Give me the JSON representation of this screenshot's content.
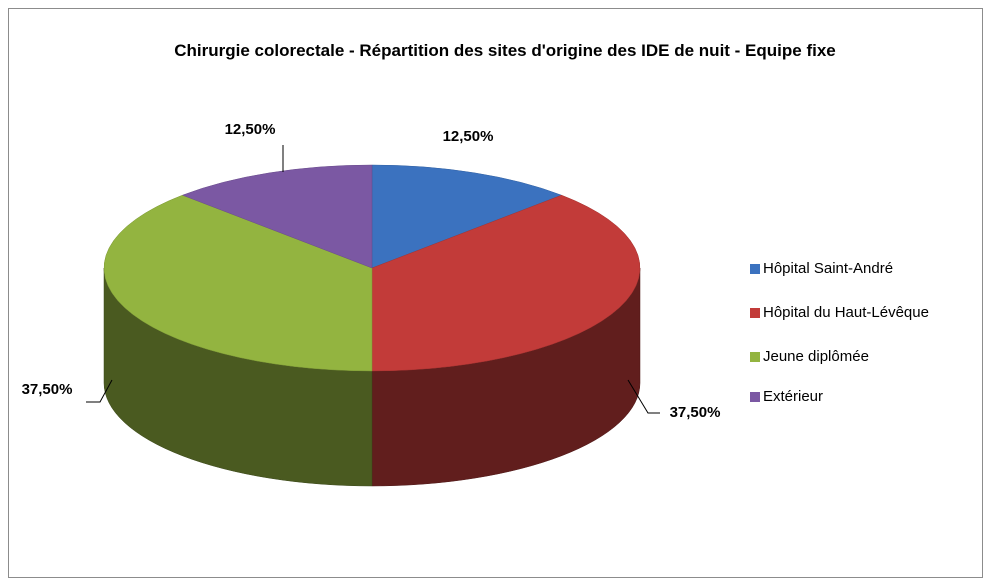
{
  "chart_data": {
    "type": "pie",
    "title": "Chirurgie colorectale - Répartition des sites d'origine des IDE de nuit - Equipe fixe",
    "categories": [
      "Hôpital Saint-André",
      "Hôpital du Haut-Lévêque",
      "Jeune diplômée",
      "Extérieur"
    ],
    "values": [
      12.5,
      37.5,
      37.5,
      12.5
    ],
    "value_labels": [
      "12,50%",
      "37,50%",
      "37,50%",
      "12,50%"
    ],
    "colors": [
      "#3b72bf",
      "#c23b39",
      "#93b440",
      "#7b58a3"
    ],
    "legend": "right"
  }
}
